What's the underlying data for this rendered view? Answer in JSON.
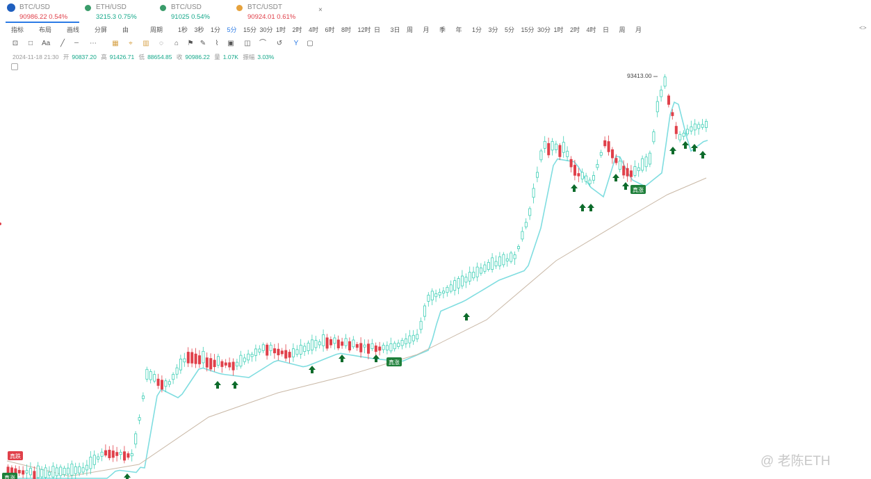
{
  "tabs": [
    {
      "name": "BTC/USD",
      "price": "90986.22",
      "change": "0.54%",
      "trend": "red",
      "active": true,
      "dot": "#1f5fbf"
    },
    {
      "name": "ETH/USD",
      "price": "3215.3",
      "change": "0.75%",
      "trend": "green",
      "active": false,
      "dot": "#3a9c6a"
    },
    {
      "name": "BTC/USD",
      "price": "91025",
      "change": "0.54%",
      "trend": "green",
      "active": false,
      "dot": "#3a9c6a"
    },
    {
      "name": "BTC/USDT",
      "price": "90924.01",
      "change": "0.61%",
      "trend": "red",
      "active": false,
      "dot": "#e6a23c"
    }
  ],
  "tab_close": "×",
  "toolbar": [
    "指标",
    "布局",
    "画线",
    "分屏",
    "由",
    "周期",
    "1秒",
    "3秒",
    "1分",
    "5分",
    "15分",
    "30分",
    "1时",
    "2时",
    "4时",
    "6时",
    "8时",
    "12时",
    "日",
    "3日",
    "周",
    "月",
    "季",
    "年",
    "1分",
    "3分",
    "5分",
    "15分",
    "30分",
    "1时",
    "2时",
    "4时",
    "日",
    "周",
    "月"
  ],
  "toolbar_active_index": 9,
  "corner_button": "<>",
  "drawing_tools": [
    "⊡",
    "□",
    "Aa",
    "╱",
    "┄",
    "⋯",
    "▦",
    "⌖",
    "▥",
    "◌",
    "⌂",
    "⚑",
    "✎",
    "⌇",
    "▣",
    "◫",
    "⌒",
    "↺",
    "Y",
    "▢"
  ],
  "ohlc": {
    "time": "2024-11-18 21:30",
    "open_label": "开",
    "open": "90837.20",
    "high_label": "高",
    "high": "91426.71",
    "low_label": "低",
    "low": "88654.85",
    "close_label": "收",
    "close": "90986.22",
    "vol_label": "量",
    "vol": "1.07K",
    "amp_label": "振幅",
    "amp": "3.03%"
  },
  "high_price_label": "93413.00",
  "signal_label_buy": "真涨",
  "signal_label_sell": "真跌",
  "watermark": "@ 老陈ETH",
  "colors": {
    "up": "#3fcfb6",
    "down": "#e0404a",
    "ema_fast": "#7fdde0",
    "ema_slow": "#c9b8a6",
    "arrow": "#0d6b2b",
    "buy_badge": "#1e7f3a",
    "sell_badge": "#e0404a"
  }
}
